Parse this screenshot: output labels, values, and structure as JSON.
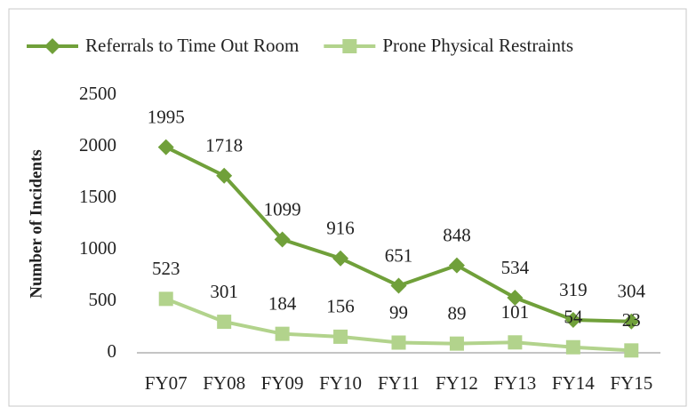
{
  "chart_data": {
    "type": "line",
    "y_label": "Number of Incidents",
    "categories": [
      "FY07",
      "FY08",
      "FY09",
      "FY10",
      "FY11",
      "FY12",
      "FY13",
      "FY14",
      "FY15"
    ],
    "series": [
      {
        "name": "Referrals to Time Out Room",
        "color": "#70a03a",
        "marker": "diamond",
        "values": [
          1995,
          1718,
          1099,
          916,
          651,
          848,
          534,
          319,
          304
        ]
      },
      {
        "name": "Prone Physical Restraints",
        "color": "#b2d38c",
        "marker": "square",
        "values": [
          523,
          301,
          184,
          156,
          99,
          89,
          101,
          54,
          23
        ]
      }
    ],
    "ylim": [
      0,
      2500
    ],
    "yticks": [
      0,
      500,
      1000,
      1500,
      2000,
      2500
    ],
    "grid": false,
    "legend": "top"
  }
}
